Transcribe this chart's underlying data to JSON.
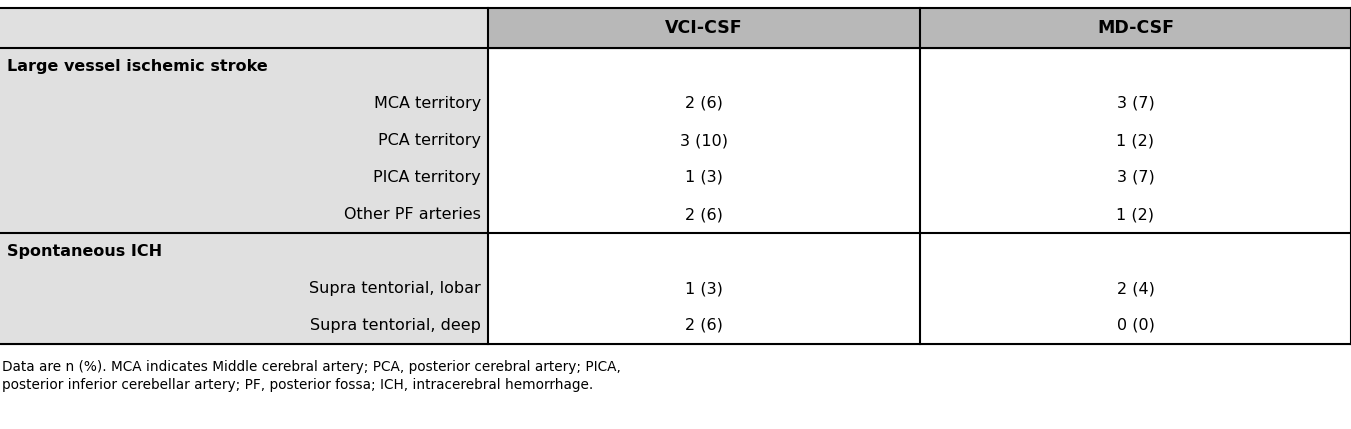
{
  "col_headers": [
    "VCI-CSF",
    "MD-CSF"
  ],
  "rows": [
    {
      "label": "Large vessel ischemic stroke",
      "bold": true,
      "indent": false,
      "vci": "",
      "md": ""
    },
    {
      "label": "MCA territory",
      "bold": false,
      "indent": true,
      "vci": "2 (6)",
      "md": "3 (7)"
    },
    {
      "label": "PCA territory",
      "bold": false,
      "indent": true,
      "vci": "3 (10)",
      "md": "1 (2)"
    },
    {
      "label": "PICA territory",
      "bold": false,
      "indent": true,
      "vci": "1 (3)",
      "md": "3 (7)"
    },
    {
      "label": "Other PF arteries",
      "bold": false,
      "indent": true,
      "vci": "2 (6)",
      "md": "1 (2)"
    },
    {
      "label": "Spontaneous ICH",
      "bold": true,
      "indent": false,
      "vci": "",
      "md": ""
    },
    {
      "label": "Supra tentorial, lobar",
      "bold": false,
      "indent": true,
      "vci": "1 (3)",
      "md": "2 (4)"
    },
    {
      "label": "Supra tentorial, deep",
      "bold": false,
      "indent": true,
      "vci": "2 (6)",
      "md": "0 (0)"
    }
  ],
  "footnote_line1": "Data are n (%). MCA indicates Middle cerebral artery; PCA, posterior cerebral artery; PICA,",
  "footnote_line2": "posterior inferior cerebellar artery; PF, posterior fossa; ICH, intracerebral hemorrhage.",
  "bg_color": "#e0e0e0",
  "header_bg": "#b8b8b8",
  "white_col_bg": "#ffffff",
  "border_color": "#000000",
  "text_color": "#000000",
  "font_size": 11.5,
  "header_font_size": 12.5,
  "footnote_font_size": 9.8
}
